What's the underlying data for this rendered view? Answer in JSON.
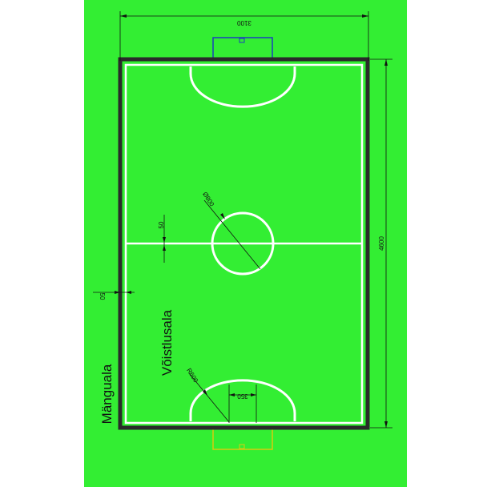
{
  "colors": {
    "background": "#ffffff",
    "field": "#33ee33",
    "border": "#2a2a2a",
    "lines": "#ffffff",
    "dimension_lines": "#111111",
    "top_goal": "#1b3fbf",
    "bottom_goal": "#d8cc10"
  },
  "dimensions": {
    "width": "3100",
    "length": "4600",
    "line_width": "50",
    "border_width": "50",
    "center_circle": "Ø800",
    "penalty_radius": "R600",
    "penalty_offset": "350"
  },
  "labels": {
    "play_area": "Mänguala",
    "competition_area": "Võistlusala"
  }
}
